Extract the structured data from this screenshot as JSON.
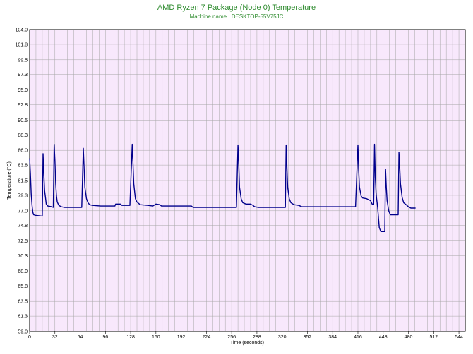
{
  "chart_data": {
    "type": "line",
    "title": "AMD Ryzen 7 Package (Node 0) Temperature",
    "subtitle": "Machine name : DESKTOP-55V75JC",
    "xlabel": "Time (seconds)",
    "ylabel": "Temperature (°C)",
    "xlim": [
      0,
      552
    ],
    "ylim": [
      59.0,
      104.0
    ],
    "x_ticks": [
      "0",
      "32",
      "64",
      "96",
      "128",
      "160",
      "192",
      "224",
      "256",
      "288",
      "320",
      "352",
      "384",
      "416",
      "448",
      "480",
      "512",
      "544"
    ],
    "y_ticks": [
      "59.0",
      "61.3",
      "63.5",
      "65.8",
      "68.0",
      "70.3",
      "72.5",
      "74.8",
      "77.0",
      "79.3",
      "81.5",
      "83.8",
      "86.0",
      "88.3",
      "90.5",
      "92.8",
      "95.0",
      "97.3",
      "99.5",
      "101.8",
      "104.0"
    ],
    "grid": true,
    "colors": {
      "line": "#00008b",
      "plot_background": "#f8e8fc",
      "grid": "#a6a6a6",
      "title": "#2e8b2e"
    },
    "series": [
      {
        "values": [
          [
            0,
            84.8
          ],
          [
            1,
            82.5
          ],
          [
            2,
            79.5
          ],
          [
            3,
            77.8
          ],
          [
            4,
            76.8
          ],
          [
            5,
            76.4
          ],
          [
            8,
            76.3
          ],
          [
            16,
            76.2
          ],
          [
            17,
            85.5
          ],
          [
            18,
            82.5
          ],
          [
            19,
            80.0
          ],
          [
            20,
            79.0
          ],
          [
            21,
            78.0
          ],
          [
            23,
            77.7
          ],
          [
            28,
            77.6
          ],
          [
            30,
            77.5
          ],
          [
            31,
            86.9
          ],
          [
            32,
            84.5
          ],
          [
            33,
            81.0
          ],
          [
            34,
            79.2
          ],
          [
            35,
            78.3
          ],
          [
            37,
            77.8
          ],
          [
            40,
            77.6
          ],
          [
            44,
            77.5
          ],
          [
            66,
            77.5
          ],
          [
            68,
            86.3
          ],
          [
            69,
            83.5
          ],
          [
            70,
            80.5
          ],
          [
            72,
            78.8
          ],
          [
            74,
            78.2
          ],
          [
            76,
            77.9
          ],
          [
            80,
            77.8
          ],
          [
            90,
            77.7
          ],
          [
            108,
            77.7
          ],
          [
            109,
            78.0
          ],
          [
            115,
            78.0
          ],
          [
            117,
            77.8
          ],
          [
            127,
            77.8
          ],
          [
            130,
            86.9
          ],
          [
            131,
            84.0
          ],
          [
            132,
            81.0
          ],
          [
            134,
            78.8
          ],
          [
            136,
            78.3
          ],
          [
            140,
            77.9
          ],
          [
            150,
            77.8
          ],
          [
            156,
            77.7
          ],
          [
            160,
            78.0
          ],
          [
            165,
            77.9
          ],
          [
            167,
            77.7
          ],
          [
            205,
            77.7
          ],
          [
            207,
            77.5
          ],
          [
            262,
            77.5
          ],
          [
            264,
            86.8
          ],
          [
            265,
            84.0
          ],
          [
            266,
            80.5
          ],
          [
            268,
            78.8
          ],
          [
            270,
            78.2
          ],
          [
            274,
            78.0
          ],
          [
            280,
            78.0
          ],
          [
            283,
            77.8
          ],
          [
            285,
            77.6
          ],
          [
            290,
            77.5
          ],
          [
            324,
            77.5
          ],
          [
            325,
            86.8
          ],
          [
            326,
            83.5
          ],
          [
            327,
            80.5
          ],
          [
            329,
            78.8
          ],
          [
            331,
            78.2
          ],
          [
            335,
            77.9
          ],
          [
            341,
            77.8
          ],
          [
            345,
            77.6
          ],
          [
            413,
            77.6
          ],
          [
            416,
            86.8
          ],
          [
            417,
            83.0
          ],
          [
            418,
            80.5
          ],
          [
            420,
            79.2
          ],
          [
            422,
            78.9
          ],
          [
            427,
            78.8
          ],
          [
            432,
            78.5
          ],
          [
            434,
            78.0
          ],
          [
            436,
            77.9
          ],
          [
            437,
            86.9
          ],
          [
            438,
            82.0
          ],
          [
            439,
            79.5
          ],
          [
            441,
            77.5
          ],
          [
            443,
            74.5
          ],
          [
            445,
            73.9
          ],
          [
            450,
            73.9
          ],
          [
            451,
            83.2
          ],
          [
            452,
            80.5
          ],
          [
            453,
            78.5
          ],
          [
            455,
            77.0
          ],
          [
            457,
            76.4
          ],
          [
            467,
            76.4
          ],
          [
            468,
            85.7
          ],
          [
            469,
            83.5
          ],
          [
            470,
            81.0
          ],
          [
            472,
            79.0
          ],
          [
            474,
            78.2
          ],
          [
            477,
            77.9
          ],
          [
            480,
            77.6
          ],
          [
            483,
            77.4
          ],
          [
            489,
            77.4
          ]
        ]
      }
    ]
  }
}
